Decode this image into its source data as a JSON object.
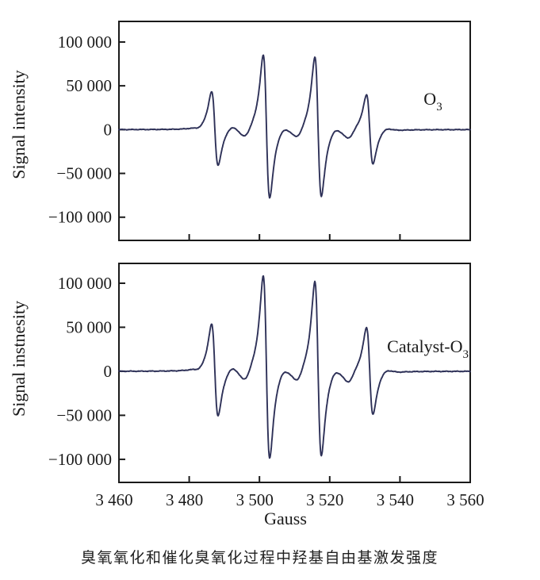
{
  "figure": {
    "caption": "臭氧氧化和催化臭氧化过程中羟基自由基激发强度"
  },
  "chart_data": {
    "type": "line",
    "description": "Stacked EPR (DMPO-OH) spectra: signal intensity vs magnetic field",
    "xlabel": "Gauss",
    "xlim": [
      3460,
      3560
    ],
    "x_tick_values": [
      3460,
      3480,
      3500,
      3520,
      3540,
      3560
    ],
    "x_tick_labels": [
      "3 460",
      "3 480",
      "3 500",
      "3 520",
      "3 540",
      "3 560"
    ],
    "line_color": "#2e3158",
    "axis_color": "#1a1a1a",
    "panels": [
      {
        "label_main": "O",
        "label_sub": "3",
        "ylabel": "Signal intensity",
        "ylim": [
          -126500,
          123500
        ],
        "y_tick_values": [
          100000,
          50000,
          0,
          -50000,
          -100000
        ],
        "y_tick_labels": [
          "100 000",
          "50 000",
          "0",
          "−50 000",
          "−100 000"
        ],
        "epr_lines": {
          "centers_gauss": [
            3487.3,
            3502.0,
            3516.7,
            3531.4
          ],
          "peak_amplitudes_positive": [
            43000,
            85000,
            83000,
            40000
          ],
          "trough_depths": [
            41000,
            78000,
            76000,
            39000
          ],
          "linewidth_gauss": 1.6
        },
        "minor_features": [
          [
            3482.9,
            -2000,
            1.5
          ],
          [
            3491.9,
            4500,
            1.7
          ],
          [
            3495.9,
            -10500,
            1.8
          ],
          [
            3506.6,
            4500,
            1.7
          ],
          [
            3510.8,
            -10500,
            1.8
          ],
          [
            3521.3,
            4500,
            1.7
          ],
          [
            3525.4,
            -10000,
            1.8
          ],
          [
            3536.0,
            3800,
            2.2
          ]
        ],
        "noise_amplitude": 500
      },
      {
        "label_main": "Catalyst-O",
        "label_sub": "3",
        "ylabel": "Signal instnesity",
        "ylim": [
          -126200,
          122500
        ],
        "y_tick_values": [
          100000,
          50000,
          0,
          -50000,
          -100000
        ],
        "y_tick_labels": [
          "100 000",
          "50 000",
          "0",
          "−50 000",
          "−100 000"
        ],
        "epr_lines": {
          "centers_gauss": [
            3487.3,
            3502.0,
            3516.7,
            3531.4
          ],
          "peak_amplitudes_positive": [
            53000,
            108000,
            102000,
            50000
          ],
          "trough_depths": [
            51000,
            99000,
            96000,
            49000
          ],
          "linewidth_gauss": 1.6
        },
        "minor_features": [
          [
            3482.9,
            -2500,
            1.5
          ],
          [
            3491.9,
            5500,
            1.7
          ],
          [
            3495.9,
            -13000,
            1.8
          ],
          [
            3506.6,
            5500,
            1.7
          ],
          [
            3510.8,
            -13000,
            1.8
          ],
          [
            3521.3,
            5500,
            1.7
          ],
          [
            3525.4,
            -12500,
            1.8
          ],
          [
            3536.0,
            4600,
            2.2
          ]
        ],
        "noise_amplitude": 550
      }
    ]
  }
}
